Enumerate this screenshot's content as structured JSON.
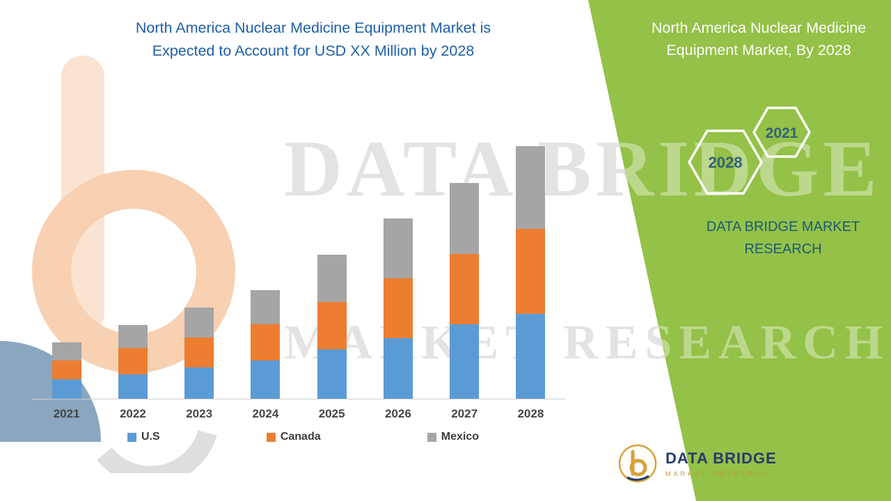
{
  "header": {
    "line1": "North America Nuclear Medicine Equipment Market is",
    "line2": "Expected to Account for USD XX Million by 2028"
  },
  "side_panel": {
    "title_line1": "North America Nuclear Medicine",
    "title_line2": "Equipment Market, By 2028",
    "hex_back_label": "2021",
    "hex_front_label": "2028",
    "brand_line1": "DATA BRIDGE MARKET",
    "brand_line2": "RESEARCH",
    "bg_color": "#94c147",
    "hex_text_color": "#33617a"
  },
  "watermark": {
    "line1": "DATA BRIDGE",
    "line2": "MARKET RESEARCH"
  },
  "footer_logo": {
    "name": "DATA BRIDGE",
    "tagline": "MARKET RESEARCH"
  },
  "chart_data": {
    "type": "bar",
    "stacked": true,
    "title": "North America Nuclear Medicine Equipment Market is Expected to Account for USD XX Million by 2028",
    "xlabel": "",
    "ylabel": "",
    "grid": false,
    "legend_position": "bottom",
    "categories": [
      "2021",
      "2022",
      "2023",
      "2024",
      "2025",
      "2026",
      "2027",
      "2028"
    ],
    "series": [
      {
        "name": "U.S",
        "color": "#5b9bd5",
        "values": [
          28,
          35,
          45,
          55,
          71,
          87,
          107,
          122
        ]
      },
      {
        "name": "Canada",
        "color": "#ed7d31",
        "values": [
          27,
          38,
          43,
          52,
          68,
          86,
          101,
          122
        ]
      },
      {
        "name": "Mexico",
        "color": "#a5a5a5",
        "values": [
          26,
          33,
          43,
          49,
          68,
          86,
          102,
          119
        ]
      }
    ],
    "values_note": "Actual values not labeled in chart (USD XX Million); series values are relative estimated heights",
    "ylim": [
      0,
      380
    ]
  }
}
